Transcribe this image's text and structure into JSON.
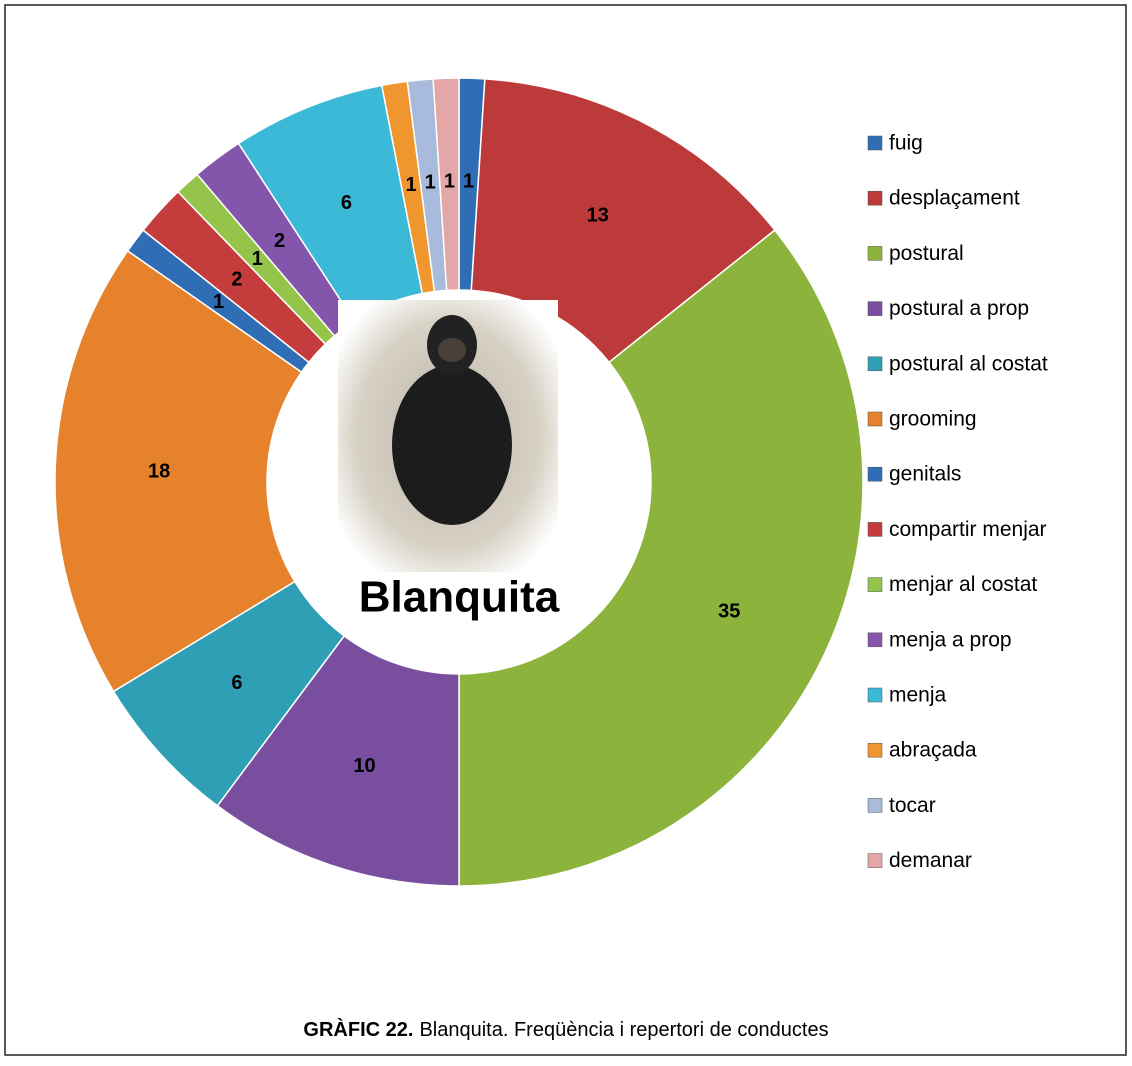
{
  "chart_data": {
    "type": "donut",
    "center_label": "Blanquita",
    "caption": {
      "label": "GRÀFIC 22.",
      "text": "Blanquita. Freqüència i repertori de conductes"
    },
    "categories": [
      "fuig",
      "desplaçament",
      "postural",
      "postural a prop",
      "postural al costat",
      "grooming",
      "genitals",
      "compartir menjar",
      "menjar al costat",
      "menja a prop",
      "menja",
      "abraçada",
      "tocar",
      "demanar"
    ],
    "values": [
      1,
      13,
      35,
      10,
      6,
      18,
      1,
      2,
      1,
      2,
      6,
      1,
      1,
      1
    ],
    "colors": [
      "#2f6db5",
      "#bd3a3a",
      "#8cb43d",
      "#7a4e9f",
      "#2f9fb5",
      "#e5822b",
      "#2f6db5",
      "#c43c3c",
      "#95c44a",
      "#8456ab",
      "#3cb9d6",
      "#f0962e",
      "#a9bbdc",
      "#e4a6a6"
    ],
    "legend": "right"
  }
}
